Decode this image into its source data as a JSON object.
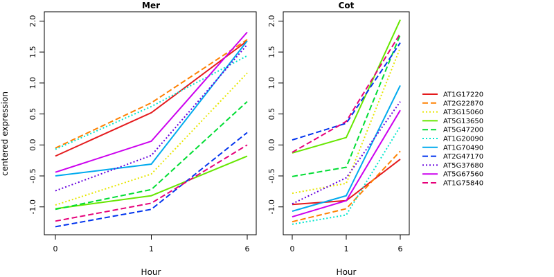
{
  "chart_data": {
    "type": "line",
    "ylabel": "centered expression",
    "xlabel": "Hour",
    "x": [
      0,
      1,
      6
    ],
    "x_tick_labels": [
      "0",
      "1",
      "6"
    ],
    "y_ticks": [
      "-1.0",
      "-0.5",
      "0.0",
      "0.5",
      "1.0",
      "1.5",
      "2.0"
    ],
    "ylim": [
      -1.45,
      2.15
    ],
    "grid": false,
    "legend_position": "right",
    "panels": [
      {
        "title": "Mer",
        "series": [
          {
            "name": "AT1G17220",
            "color": "#e41a1c",
            "dash": "solid",
            "values": [
              -0.18,
              0.52,
              1.68
            ]
          },
          {
            "name": "AT2G22870",
            "color": "#ff8000",
            "dash": "dashed",
            "values": [
              -0.05,
              0.68,
              1.7
            ]
          },
          {
            "name": "AT3G15060",
            "color": "#e6e600",
            "dash": "dotted",
            "values": [
              -0.97,
              -0.47,
              1.16
            ]
          },
          {
            "name": "AT5G13650",
            "color": "#66e600",
            "dash": "solid",
            "values": [
              -1.03,
              -0.82,
              -0.18
            ]
          },
          {
            "name": "AT5G47200",
            "color": "#00dd33",
            "dash": "dashed",
            "values": [
              -1.04,
              -0.72,
              0.7
            ]
          },
          {
            "name": "AT1G20090",
            "color": "#00e6cc",
            "dash": "dotted",
            "values": [
              -0.07,
              0.62,
              1.44
            ]
          },
          {
            "name": "AT1G70490",
            "color": "#00aaee",
            "dash": "solid",
            "values": [
              -0.5,
              -0.31,
              1.68
            ]
          },
          {
            "name": "AT2G47170",
            "color": "#0033ee",
            "dash": "dashed",
            "values": [
              -1.32,
              -1.04,
              0.2
            ]
          },
          {
            "name": "AT5G37680",
            "color": "#6600dd",
            "dash": "dotted",
            "values": [
              -0.74,
              -0.17,
              1.62
            ]
          },
          {
            "name": "AT5G67560",
            "color": "#cc00ee",
            "dash": "solid",
            "values": [
              -0.44,
              0.06,
              1.82
            ]
          },
          {
            "name": "AT1G75840",
            "color": "#e6007a",
            "dash": "dashed",
            "values": [
              -1.23,
              -0.94,
              0.0
            ]
          }
        ]
      },
      {
        "title": "Cot",
        "series": [
          {
            "name": "AT1G17220",
            "color": "#e41a1c",
            "dash": "solid",
            "values": [
              -0.96,
              -0.9,
              -0.23
            ]
          },
          {
            "name": "AT2G22870",
            "color": "#ff8000",
            "dash": "dashed",
            "values": [
              -1.24,
              -1.03,
              -0.1
            ]
          },
          {
            "name": "AT3G15060",
            "color": "#e6e600",
            "dash": "dotted",
            "values": [
              -0.78,
              -0.62,
              1.57
            ]
          },
          {
            "name": "AT5G13650",
            "color": "#66e600",
            "dash": "solid",
            "values": [
              -0.13,
              0.12,
              2.02
            ]
          },
          {
            "name": "AT5G47200",
            "color": "#00dd33",
            "dash": "dashed",
            "values": [
              -0.51,
              -0.36,
              1.78
            ]
          },
          {
            "name": "AT1G20090",
            "color": "#00e6cc",
            "dash": "dotted",
            "values": [
              -1.28,
              -1.13,
              0.3
            ]
          },
          {
            "name": "AT1G70490",
            "color": "#00aaee",
            "dash": "solid",
            "values": [
              -1.07,
              -0.82,
              0.96
            ]
          },
          {
            "name": "AT2G47170",
            "color": "#0033ee",
            "dash": "dashed",
            "values": [
              0.08,
              0.35,
              1.65
            ]
          },
          {
            "name": "AT5G37680",
            "color": "#6600dd",
            "dash": "dotted",
            "values": [
              -0.95,
              -0.53,
              0.7
            ]
          },
          {
            "name": "AT5G67560",
            "color": "#cc00ee",
            "dash": "solid",
            "values": [
              -1.16,
              -0.9,
              0.56
            ]
          },
          {
            "name": "AT1G75840",
            "color": "#e6007a",
            "dash": "dashed",
            "values": [
              -0.12,
              0.38,
              1.8
            ]
          }
        ]
      }
    ]
  }
}
